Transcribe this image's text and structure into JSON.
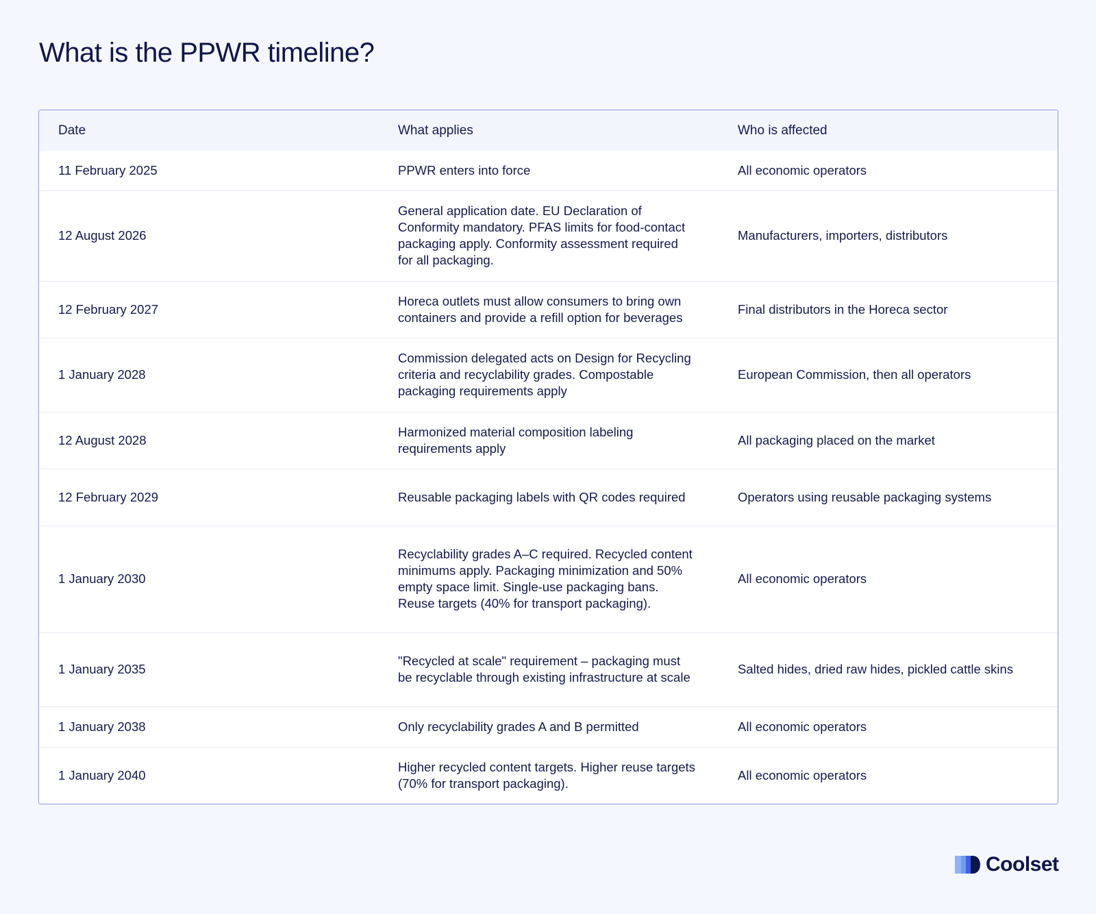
{
  "title": "What is the PPWR timeline?",
  "table": {
    "headers": [
      "Date",
      "What applies",
      "Who is affected"
    ],
    "rows": [
      {
        "date": "11 February 2025",
        "applies": "PPWR enters into force",
        "affected": "All economic operators"
      },
      {
        "date": "12 August 2026",
        "applies": "General application date. EU Declaration of Conformity mandatory. PFAS limits for food-contact packaging apply. Conformity assessment required for all packaging.",
        "affected": "Manufacturers, importers, distributors"
      },
      {
        "date": "12 February 2027",
        "applies": "Horeca outlets must allow consumers to bring own containers and provide a refill option for beverages",
        "affected": "Final distributors in the Horeca sector"
      },
      {
        "date": "1 January 2028",
        "applies": "Commission delegated acts on Design for Recycling criteria and recyclability grades. Compostable packaging requirements apply",
        "affected": "European Commission, then all operators"
      },
      {
        "date": "12 August 2028",
        "applies": "Harmonized material composition labeling requirements apply",
        "affected": "All packaging placed on the market"
      },
      {
        "date": "12 February 2029",
        "applies": "Reusable packaging labels with QR codes required",
        "affected": "Operators using reusable packaging systems"
      },
      {
        "date": "1 January 2030",
        "applies": "Recyclability grades A–C required. Recycled content minimums apply. Packaging minimization and 50% empty space limit. Single-use packaging bans. Reuse targets (40% for transport packaging).",
        "affected": "All economic operators"
      },
      {
        "date": "1 January 2035",
        "applies": "\"Recycled at scale\" requirement – packaging must be recyclable through existing infrastructure at scale",
        "affected": "Salted hides, dried raw hides, pickled cattle skins"
      },
      {
        "date": "1 January 2038",
        "applies": "Only recyclability grades A and B permitted",
        "affected": "All economic operators"
      },
      {
        "date": "1 January 2040",
        "applies": "Higher recycled content targets. Higher reuse targets (70% for transport packaging).",
        "affected": "All economic operators"
      }
    ]
  },
  "brand": {
    "name": "Coolset",
    "colors": {
      "primary": "#0f1648",
      "accent_light": "#6f9cf5",
      "accent_mid": "#3e63e8"
    }
  }
}
